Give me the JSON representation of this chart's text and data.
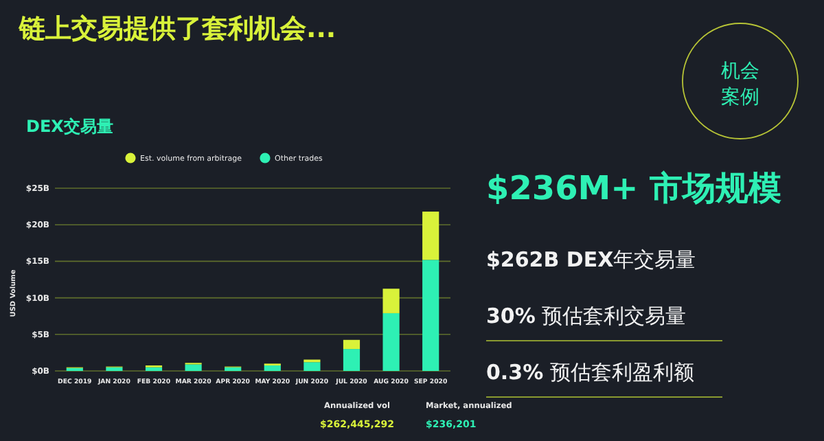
{
  "chart_data": [
    {
      "type": "bar",
      "title": "链上交易提供了套利机会...",
      "subtitle": "DEX交易量",
      "ylabel": "USD Volume",
      "stacked": true,
      "legend": "top",
      "grid": "y",
      "categories": [
        "DEC 2019",
        "JAN 2020",
        "FEB 2020",
        "MAR 2020",
        "APR 2020",
        "MAY 2020",
        "JUN 2020",
        "JUL 2020",
        "AUG 2020",
        "SEP 2020"
      ],
      "series": [
        {
          "name": "Other trades",
          "color": "#2ef0b4",
          "values": [
            0.4,
            0.5,
            0.5,
            0.9,
            0.5,
            0.75,
            1.2,
            3.0,
            7.9,
            15.2
          ]
        },
        {
          "name": "Est. volume from arbitrage",
          "color": "#d9f23a",
          "values": [
            0.1,
            0.1,
            0.25,
            0.2,
            0.1,
            0.25,
            0.35,
            1.25,
            3.35,
            6.6
          ]
        }
      ],
      "ylim": [
        0,
        25
      ],
      "yticks": [
        {
          "value": 0,
          "label": "$0B"
        },
        {
          "value": 5,
          "label": "$5B"
        },
        {
          "value": 10,
          "label": "$10B"
        },
        {
          "value": 15,
          "label": "$15B"
        },
        {
          "value": 20,
          "label": "$20B"
        },
        {
          "value": 25,
          "label": "$25B"
        }
      ],
      "annotations": [
        "Annualized vol",
        "$262,445,292",
        "Market, annualized",
        "$236,201"
      ]
    },
    {
      "type": "other",
      "annotations": [
        "机会案例",
        "$236M+ 市场规模",
        "**$262B DEX**年交易量",
        "**30%** 预估套利交易量",
        "**0.3%** 预估套利盈利额"
      ]
    }
  ]
}
